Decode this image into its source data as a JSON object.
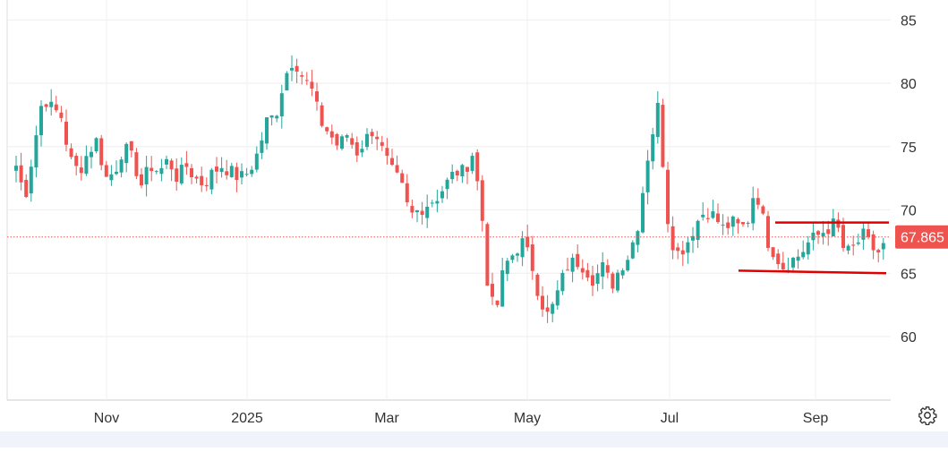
{
  "chart_data": {
    "type": "candlestick",
    "title": "",
    "xlabel": "",
    "ylabel": "",
    "ylim": [
      55,
      86
    ],
    "y_ticks": [
      60,
      65,
      70,
      75,
      80,
      85
    ],
    "x_ticks": [
      "Nov",
      "2025",
      "Mar",
      "May",
      "Jul",
      "Sep"
    ],
    "last_price": 67.865,
    "last_price_label": "67.865",
    "colors": {
      "up": "#26a69a",
      "down": "#ef5350",
      "grid": "#eeeeee",
      "axis_text": "#333333",
      "price_line": "#ef5350",
      "trend_line": "#e00000"
    },
    "approx_closes": [
      [
        0,
        73.5
      ],
      [
        10,
        71.0
      ],
      [
        20,
        75.0
      ],
      [
        30,
        79.0
      ],
      [
        40,
        78.0
      ],
      [
        50,
        77.5
      ],
      [
        60,
        74.0
      ],
      [
        70,
        73.0
      ],
      [
        80,
        74.5
      ],
      [
        90,
        75.5
      ],
      [
        100,
        72.5
      ],
      [
        110,
        73.0
      ],
      [
        120,
        75.0
      ],
      [
        130,
        74.0
      ],
      [
        140,
        72.0
      ],
      [
        150,
        73.5
      ],
      [
        160,
        73.0
      ],
      [
        170,
        74.0
      ],
      [
        180,
        72.5
      ],
      [
        190,
        73.5
      ],
      [
        200,
        72.5
      ],
      [
        210,
        72.0
      ],
      [
        220,
        73.0
      ],
      [
        230,
        73.5
      ],
      [
        240,
        73.0
      ],
      [
        250,
        72.5
      ],
      [
        260,
        73.0
      ],
      [
        270,
        74.5
      ],
      [
        280,
        77.0
      ],
      [
        290,
        77.5
      ],
      [
        300,
        80.5
      ],
      [
        310,
        82.0
      ],
      [
        320,
        80.5
      ],
      [
        330,
        79.5
      ],
      [
        340,
        77.0
      ],
      [
        350,
        76.0
      ],
      [
        360,
        75.0
      ],
      [
        370,
        76.0
      ],
      [
        380,
        74.5
      ],
      [
        390,
        75.5
      ],
      [
        400,
        76.5
      ],
      [
        410,
        74.5
      ],
      [
        420,
        73.0
      ],
      [
        430,
        72.0
      ],
      [
        440,
        69.5
      ],
      [
        450,
        70.0
      ],
      [
        460,
        70.5
      ],
      [
        470,
        71.0
      ],
      [
        480,
        72.0
      ],
      [
        490,
        73.0
      ],
      [
        500,
        73.0
      ],
      [
        510,
        74.5
      ],
      [
        520,
        70.0
      ],
      [
        525,
        65.0
      ],
      [
        535,
        61.5
      ],
      [
        545,
        65.5
      ],
      [
        555,
        66.5
      ],
      [
        565,
        67.5
      ],
      [
        575,
        66.0
      ],
      [
        585,
        63.0
      ],
      [
        595,
        61.5
      ],
      [
        605,
        63.5
      ],
      [
        615,
        65.5
      ],
      [
        625,
        66.0
      ],
      [
        635,
        65.5
      ],
      [
        645,
        64.5
      ],
      [
        655,
        65.5
      ],
      [
        665,
        64.0
      ],
      [
        675,
        65.5
      ],
      [
        685,
        66.5
      ],
      [
        695,
        69.0
      ],
      [
        705,
        74.0
      ],
      [
        712,
        76.5
      ],
      [
        718,
        78.5
      ],
      [
        726,
        70.0
      ],
      [
        733,
        67.5
      ],
      [
        740,
        66.5
      ],
      [
        750,
        67.5
      ],
      [
        760,
        69.0
      ],
      [
        770,
        70.0
      ],
      [
        780,
        69.5
      ],
      [
        790,
        68.5
      ],
      [
        800,
        69.0
      ],
      [
        810,
        68.5
      ],
      [
        820,
        69.5
      ],
      [
        825,
        72.0
      ],
      [
        832,
        70.0
      ],
      [
        840,
        67.5
      ],
      [
        848,
        66.5
      ],
      [
        856,
        65.5
      ],
      [
        866,
        66.0
      ],
      [
        876,
        66.5
      ],
      [
        886,
        67.5
      ],
      [
        896,
        68.0
      ],
      [
        906,
        68.5
      ],
      [
        916,
        69.0
      ],
      [
        926,
        66.5
      ],
      [
        936,
        67.0
      ],
      [
        946,
        68.0
      ],
      [
        956,
        67.0
      ],
      [
        966,
        66.5
      ],
      [
        972,
        67.865
      ]
    ],
    "annotations": [
      {
        "type": "trend_line",
        "role": "resistance",
        "from": [
          866,
          69.0
        ],
        "to": [
          993,
          69.0
        ]
      },
      {
        "type": "trend_line",
        "role": "support",
        "from": [
          825,
          65.2
        ],
        "to": [
          990,
          65.0
        ]
      }
    ]
  },
  "ui": {
    "settings_icon": "gear-icon"
  }
}
